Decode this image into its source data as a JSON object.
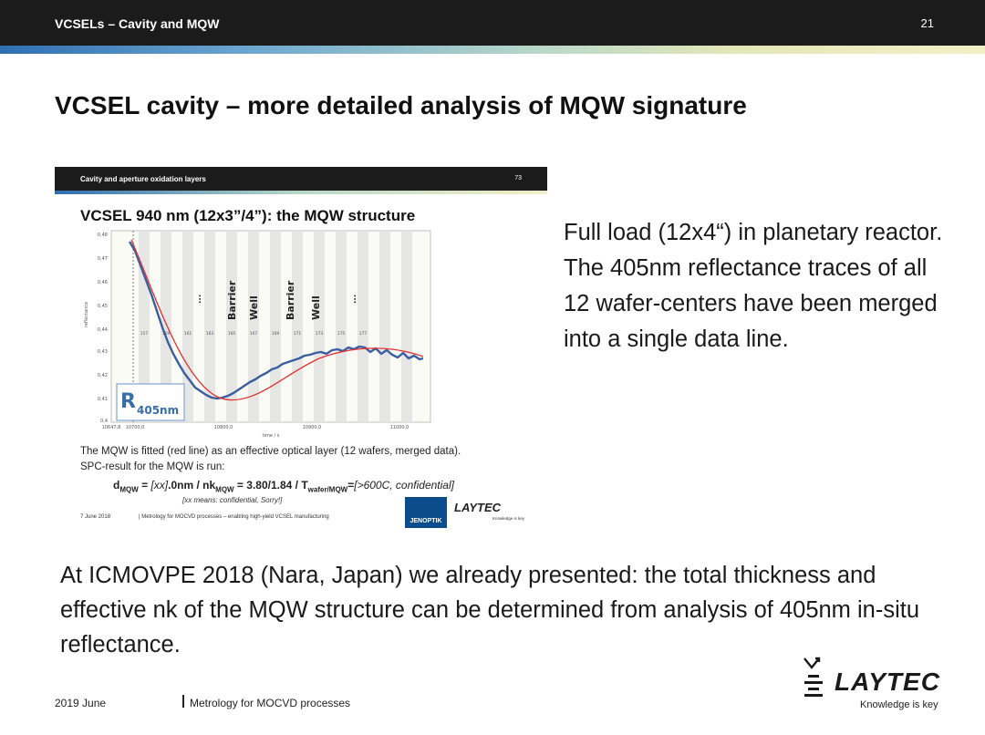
{
  "header": {
    "title": "VCSELs – Cavity and MQW",
    "page_number": "21"
  },
  "slide_title": "VCSEL cavity – more detailed analysis of MQW signature",
  "embedded_slide": {
    "header_title": "Cavity and aperture oxidation layers",
    "header_number": "73",
    "title": "VCSEL 940 nm (12x3”/4”): the MQW structure",
    "plot": {
      "y_axis_label": "reflectance",
      "y_ticks": [
        "0,48",
        "0,47",
        "0,46",
        "0,45",
        "0,44",
        "0,43",
        "0,42",
        "0,41",
        "0,4"
      ],
      "x_ticks": [
        "10647,8",
        "10700,0",
        "10800,0",
        "10900,0",
        "11000,0"
      ],
      "x_axis_label": "time / s",
      "layer_labels": [
        "Barrier",
        "Well",
        "Barrier",
        "Well"
      ],
      "ellipsis": "...",
      "layer_numbers": [
        "157",
        "159",
        "161",
        "163",
        "165",
        "167",
        "169",
        "171",
        "173",
        "175",
        "177"
      ],
      "badge_main": "R",
      "badge_sub": "405nm"
    },
    "text_line_1": "The MQW is fitted (red line) as an effective optical layer (12 wafers, merged data).",
    "text_line_2": "SPC-result for the MQW is run:",
    "result_d": "d",
    "result_d_sub": "MQW",
    "result_d_value": " = ",
    "result_d_italic": "[xx]",
    "result_d_unit": ".0nm  /  nk",
    "result_nk_sub": "MQW",
    "result_nk_value": " = 3.80/1.84 / T",
    "result_t_sub": "wafer/MQW",
    "result_t_value": "=",
    "result_t_italic": "[>600C, confidential]",
    "note": "[xx means: confidential, Sorry!]",
    "footer_date": "7 June 2018",
    "footer_text": "|  Metrology for MOCVD processes – enabling high-yield VCSEL manufacturing",
    "jenoptik": "JENOPTIK",
    "logo_word": "LAYTEC",
    "logo_slogan": "Knowledge is key"
  },
  "side_text": "Full load (12x4“) in planetary reactor. The 405nm reflectance traces of all 12 wafer-centers have been merged into a single data line.",
  "bottom_text": "At ICMOVPE 2018 (Nara, Japan) we already presented: the total thickness and effective nk of the MQW structure can be determined from analysis of 405nm in-situ reflectance.",
  "footer": {
    "date": "2019 June",
    "text": "Metrology for MOCVD processes"
  },
  "logo": {
    "word": "LAYTEC",
    "slogan": "Knowledge is key"
  },
  "colors": {
    "fit_line": "#e53030",
    "data_line": "#3a5fa0",
    "badge_border": "#7fa8d0",
    "jenoptik": "#0b4c8c"
  }
}
